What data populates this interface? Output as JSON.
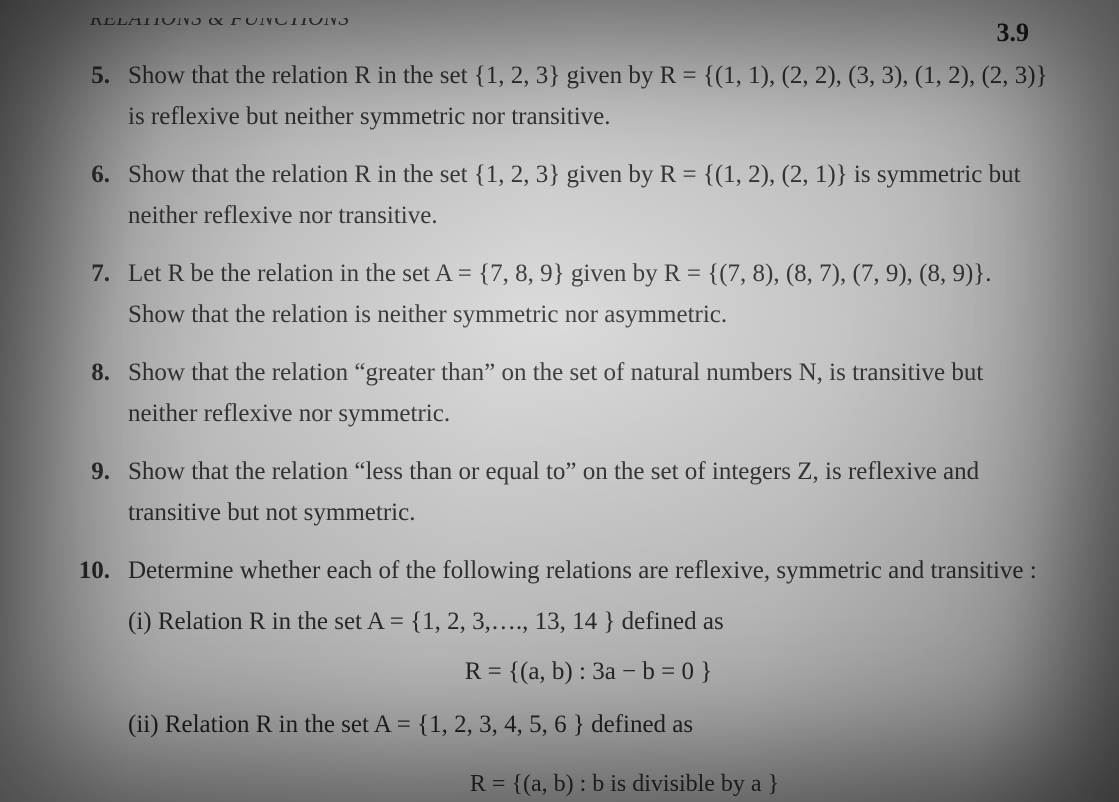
{
  "page": {
    "header_fragment": "RELATIONS & FUNCTIONS",
    "number": "3.9"
  },
  "questions": [
    {
      "num": "5.",
      "text": "Show that the relation R in the set {1, 2, 3} given by R = {(1, 1), (2, 2), (3, 3), (1, 2), (2, 3)} is reflexive but neither symmetric nor transitive."
    },
    {
      "num": "6.",
      "text": "Show that the relation R in the set {1, 2, 3} given by R = {(1, 2), (2, 1)} is symmetric but neither reflexive nor transitive."
    },
    {
      "num": "7.",
      "text": "Let R be the relation in the set A = {7, 8, 9} given by R = {(7, 8), (8, 7), (7, 9), (8, 9)}. Show that the relation is neither symmetric nor asymmetric."
    },
    {
      "num": "8.",
      "text": "Show that the relation “greater than” on the set of natural numbers N, is transitive but neither reflexive nor symmetric."
    },
    {
      "num": "9.",
      "text": "Show that the relation “less than or equal to” on the set of integers Z, is reflexive and transitive but not symmetric."
    },
    {
      "num": "10.",
      "text": "Determine whether each of the following relations are reflexive, symmetric and transitive :",
      "subs": [
        {
          "label": "(i)",
          "text": "Relation R in the set A = {1, 2, 3,…., 13, 14 } defined as",
          "eq": "R = {(a, b) : 3a − b = 0 }"
        },
        {
          "label": "(ii)",
          "text": "Relation R in the set A = {1, 2, 3, 4, 5, 6 } defined as"
        }
      ]
    }
  ],
  "cutoff_text": "R = {(a, b) : b is divisible by a }",
  "style": {
    "text_color": "#1a1a1a",
    "body_fontsize": 25,
    "num_fontsize": 25,
    "pagenum_fontsize": 26
  }
}
